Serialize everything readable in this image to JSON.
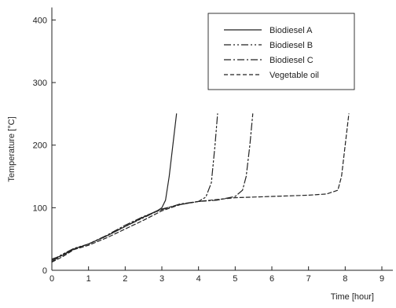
{
  "chart_data": {
    "type": "line",
    "title": "",
    "xlabel": "Time [hour]",
    "ylabel": "Temperature [°C]",
    "xlim": [
      0,
      9.3
    ],
    "ylim": [
      0,
      420
    ],
    "x_ticks": [
      0,
      1,
      2,
      3,
      4,
      5,
      6,
      7,
      8,
      9
    ],
    "y_ticks": [
      0,
      100,
      200,
      300,
      400
    ],
    "grid": false,
    "legend_position": "top-right",
    "line_color": "#222222",
    "series": [
      {
        "name": "Biodiesel A",
        "dash": "solid",
        "points": [
          [
            0,
            18
          ],
          [
            0.3,
            24
          ],
          [
            0.6,
            34
          ],
          [
            1,
            42
          ],
          [
            1.5,
            55
          ],
          [
            2,
            70
          ],
          [
            2.5,
            85
          ],
          [
            2.9,
            96
          ],
          [
            3.0,
            100
          ],
          [
            3.1,
            112
          ],
          [
            3.2,
            150
          ],
          [
            3.3,
            200
          ],
          [
            3.4,
            250
          ]
        ]
      },
      {
        "name": "Biodiesel B",
        "dash": "dash-dot-dot",
        "points": [
          [
            0,
            16
          ],
          [
            0.3,
            26
          ],
          [
            0.6,
            35
          ],
          [
            1,
            42
          ],
          [
            1.5,
            55
          ],
          [
            2,
            70
          ],
          [
            2.5,
            84
          ],
          [
            3,
            98
          ],
          [
            3.5,
            105
          ],
          [
            4,
            110
          ],
          [
            4.2,
            117
          ],
          [
            4.35,
            140
          ],
          [
            4.45,
            200
          ],
          [
            4.52,
            250
          ]
        ]
      },
      {
        "name": "Biodiesel C",
        "dash": "dash-dot",
        "points": [
          [
            0,
            14
          ],
          [
            0.3,
            25
          ],
          [
            0.6,
            34
          ],
          [
            1,
            42
          ],
          [
            1.5,
            56
          ],
          [
            2,
            72
          ],
          [
            2.5,
            86
          ],
          [
            3,
            97
          ],
          [
            3.5,
            106
          ],
          [
            4,
            110
          ],
          [
            4.5,
            112
          ],
          [
            5,
            118
          ],
          [
            5.2,
            128
          ],
          [
            5.3,
            150
          ],
          [
            5.4,
            200
          ],
          [
            5.48,
            250
          ]
        ]
      },
      {
        "name": "Vegetable oil",
        "dash": "dashed",
        "points": [
          [
            0,
            13
          ],
          [
            0.3,
            22
          ],
          [
            0.6,
            33
          ],
          [
            1,
            40
          ],
          [
            1.5,
            52
          ],
          [
            2,
            66
          ],
          [
            2.5,
            80
          ],
          [
            3,
            95
          ],
          [
            3.5,
            105
          ],
          [
            4,
            110
          ],
          [
            4.5,
            113
          ],
          [
            5,
            116
          ],
          [
            5.5,
            117
          ],
          [
            6,
            118
          ],
          [
            6.5,
            119
          ],
          [
            7,
            120
          ],
          [
            7.5,
            122
          ],
          [
            7.8,
            128
          ],
          [
            7.9,
            150
          ],
          [
            8.0,
            200
          ],
          [
            8.1,
            250
          ]
        ]
      }
    ]
  }
}
